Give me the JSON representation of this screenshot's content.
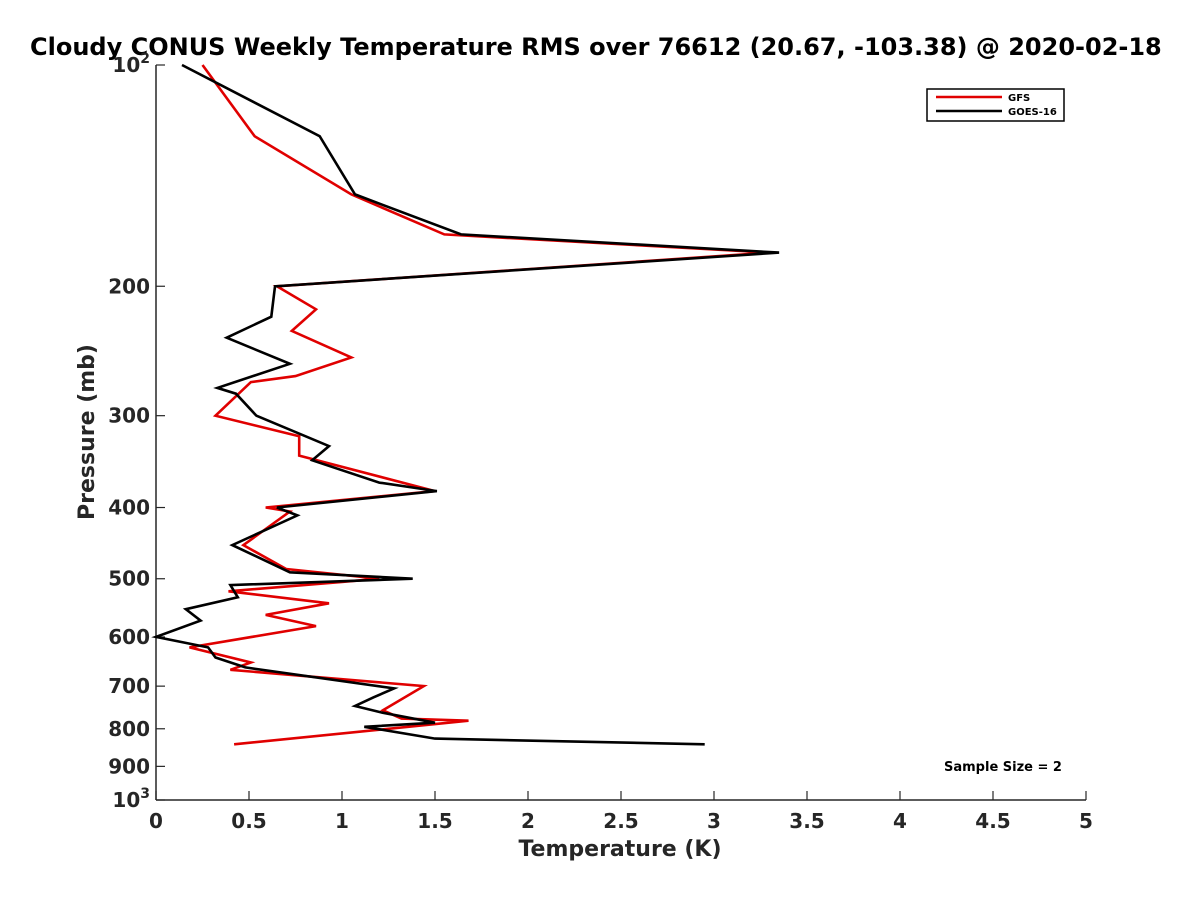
{
  "chart_data": {
    "type": "line",
    "title": "Cloudy CONUS Weekly Temperature RMS over 76612 (20.67, -103.38) @ 2020-02-18",
    "xlabel": "Temperature (K)",
    "ylabel": "Pressure (mb)",
    "xlim": [
      0,
      5
    ],
    "ylim": [
      100,
      1000
    ],
    "yscale": "log",
    "y_reversed": true,
    "x_ticks": [
      0,
      0.5,
      1,
      1.5,
      2,
      2.5,
      3,
      3.5,
      4,
      4.5,
      5
    ],
    "x_tick_labels": [
      "0",
      "0.5",
      "1",
      "1.5",
      "2",
      "2.5",
      "3",
      "3.5",
      "4",
      "4.5",
      "5"
    ],
    "y_ticks": [
      100,
      200,
      300,
      400,
      500,
      600,
      700,
      800,
      900,
      1000
    ],
    "y_tick_labels": [
      {
        "base": "10",
        "exp": "2"
      },
      {
        "base": "200",
        "exp": ""
      },
      {
        "base": "300",
        "exp": ""
      },
      {
        "base": "400",
        "exp": ""
      },
      {
        "base": "500",
        "exp": ""
      },
      {
        "base": "600",
        "exp": ""
      },
      {
        "base": "700",
        "exp": ""
      },
      {
        "base": "800",
        "exp": ""
      },
      {
        "base": "900",
        "exp": ""
      },
      {
        "base": "10",
        "exp": "3"
      }
    ],
    "grid": false,
    "legend_position": "top-right",
    "annotation": "Sample Size = 2",
    "series": [
      {
        "name": "GFS",
        "color": "#e00000",
        "points": [
          [
            0.25,
            100
          ],
          [
            0.53,
            125
          ],
          [
            1.05,
            150
          ],
          [
            1.55,
            170
          ],
          [
            3.3,
            180
          ],
          [
            0.65,
            200
          ],
          [
            0.86,
            215
          ],
          [
            0.73,
            230
          ],
          [
            1.05,
            250
          ],
          [
            0.75,
            265
          ],
          [
            0.51,
            270
          ],
          [
            0.32,
            300
          ],
          [
            0.77,
            320
          ],
          [
            0.77,
            340
          ],
          [
            1.5,
            380
          ],
          [
            0.59,
            400
          ],
          [
            0.72,
            405
          ],
          [
            0.47,
            450
          ],
          [
            0.7,
            485
          ],
          [
            1.2,
            500
          ],
          [
            1.0,
            505
          ],
          [
            0.39,
            520
          ],
          [
            0.93,
            540
          ],
          [
            0.59,
            560
          ],
          [
            0.86,
            580
          ],
          [
            0.18,
            620
          ],
          [
            0.51,
            650
          ],
          [
            0.4,
            665
          ],
          [
            1.44,
            700
          ],
          [
            1.22,
            755
          ],
          [
            1.32,
            775
          ],
          [
            1.68,
            780
          ],
          [
            0.42,
            840
          ]
        ]
      },
      {
        "name": "GOES-16",
        "color": "#000000",
        "points": [
          [
            0.14,
            100
          ],
          [
            0.88,
            125
          ],
          [
            1.07,
            150
          ],
          [
            1.64,
            170
          ],
          [
            3.35,
            180
          ],
          [
            0.64,
            200
          ],
          [
            0.62,
            220
          ],
          [
            0.38,
            235
          ],
          [
            0.72,
            255
          ],
          [
            0.33,
            275
          ],
          [
            0.43,
            280
          ],
          [
            0.54,
            300
          ],
          [
            0.93,
            330
          ],
          [
            0.84,
            345
          ],
          [
            1.2,
            370
          ],
          [
            1.51,
            380
          ],
          [
            0.65,
            400
          ],
          [
            0.76,
            410
          ],
          [
            0.41,
            450
          ],
          [
            0.72,
            490
          ],
          [
            1.38,
            500
          ],
          [
            0.4,
            510
          ],
          [
            0.44,
            530
          ],
          [
            0.16,
            550
          ],
          [
            0.24,
            570
          ],
          [
            0.0,
            600
          ],
          [
            0.28,
            620
          ],
          [
            0.32,
            640
          ],
          [
            0.48,
            660
          ],
          [
            1.28,
            705
          ],
          [
            1.17,
            725
          ],
          [
            1.07,
            745
          ],
          [
            1.21,
            760
          ],
          [
            1.5,
            785
          ],
          [
            1.12,
            795
          ],
          [
            1.5,
            825
          ],
          [
            2.95,
            840
          ]
        ]
      }
    ]
  }
}
